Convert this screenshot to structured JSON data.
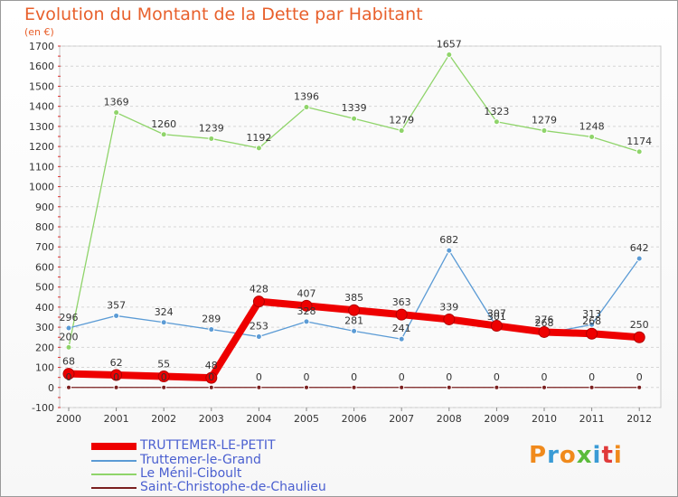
{
  "title": "Evolution du Montant de la Dette par Habitant",
  "subtitle": "(en €)",
  "logo": {
    "text": "Proxiti",
    "colors": [
      "#f08a1c",
      "#3a9bd5",
      "#f08a1c",
      "#5bbb3b",
      "#3a9bd5",
      "#e03a3a",
      "#f08a1c"
    ]
  },
  "chart_data": {
    "type": "line",
    "x": [
      "2000",
      "2001",
      "2002",
      "2003",
      "2004",
      "2005",
      "2006",
      "2007",
      "2008",
      "2009",
      "2010",
      "2011",
      "2012"
    ],
    "ylim": [
      -100,
      1700
    ],
    "yticks": [
      -100,
      0,
      100,
      200,
      300,
      400,
      500,
      600,
      700,
      800,
      900,
      1000,
      1100,
      1200,
      1300,
      1400,
      1500,
      1600,
      1700
    ],
    "grid": "horizontal dashed",
    "legend_position": "bottom-left",
    "series": [
      {
        "name": "TRUTTEMER-LE-PETIT",
        "color": "#ee0000",
        "values": [
          68,
          62,
          55,
          48,
          428,
          407,
          385,
          363,
          339,
          307,
          276,
          268,
          250
        ]
      },
      {
        "name": "Truttemer-le-Grand",
        "color": "#5b9bd5",
        "values": [
          296,
          357,
          324,
          289,
          253,
          328,
          281,
          241,
          682,
          301,
          268,
          313,
          642
        ]
      },
      {
        "name": "Le Ménil-Ciboult",
        "color": "#8fd46a",
        "values": [
          200,
          1369,
          1260,
          1239,
          1192,
          1396,
          1339,
          1279,
          1657,
          1323,
          1279,
          1248,
          1174
        ]
      },
      {
        "name": "Saint-Christophe-de-Chaulieu",
        "color": "#7a1f1f",
        "values": [
          0,
          0,
          0,
          0,
          0,
          0,
          0,
          0,
          0,
          0,
          0,
          0,
          0
        ]
      }
    ]
  }
}
